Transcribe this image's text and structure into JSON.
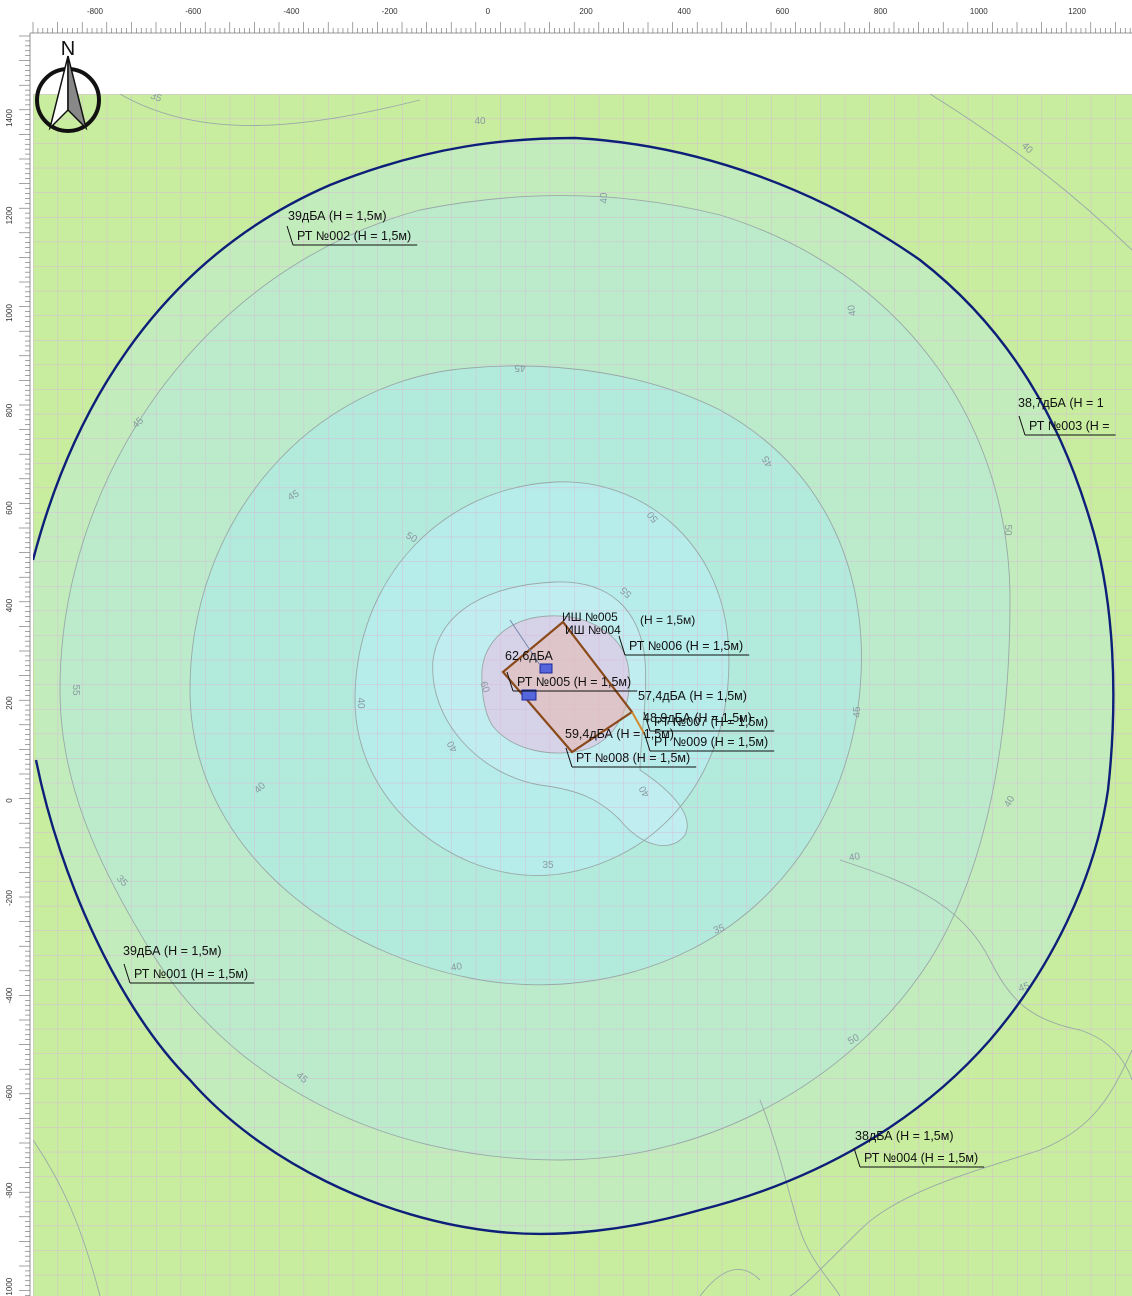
{
  "map": {
    "north_label": "N",
    "x_ticks": [
      "-800",
      "-600",
      "-400",
      "-200",
      "0",
      "200",
      "400",
      "600",
      "800",
      "1000",
      "1200"
    ],
    "y_ticks": [
      "1400",
      "1200",
      "1000",
      "800",
      "600",
      "400",
      "200",
      "0",
      "-200",
      "-400",
      "-600",
      "-800",
      "-1000"
    ],
    "colors": {
      "background": "#c8ed9e",
      "zone_outer": "#c2ecbe",
      "zone_40": "#b9ebcd",
      "zone_45": "#b0eadb",
      "zone_50": "#b6ecec",
      "zone_55": "#d9cde3",
      "boundary_line": "#0d1f78",
      "site_outline": "#8a4a1a",
      "grid": "#d9b9d6"
    },
    "isoline_labels": [
      "35",
      "40",
      "40",
      "40",
      "40",
      "45",
      "45",
      "45",
      "45",
      "50",
      "50",
      "50",
      "55",
      "55",
      "60",
      "40",
      "45",
      "40",
      "40",
      "40",
      "35",
      "35",
      "40",
      "40",
      "35",
      "40",
      "45",
      "50",
      "45"
    ],
    "calc_points": [
      {
        "level": "39дБА (Н = 1,5м)",
        "name": "РТ №002 (Н = 1,5м)"
      },
      {
        "level": "38,7дБА (Н = 1",
        "name": "РТ №003 (Н ="
      },
      {
        "level": "39дБА (Н = 1,5м)",
        "name": "РТ №001 (Н = 1,5м)"
      },
      {
        "level": "38дБА (Н = 1,5м)",
        "name": "РТ №004 (Н = 1,5м)"
      },
      {
        "level": "62,6дБА",
        "name": "РТ №005 (Н = 1,5м)"
      },
      {
        "level": "57,4дБА (Н = 1,5м)",
        "name": "РТ №006 (Н = 1,5м)"
      },
      {
        "level": "59,4дБА (Н = 1,5м)",
        "name": "РТ №008 (Н = 1,5м)"
      },
      {
        "level": "48,9дБА (Н = 1,5м)",
        "name": "РТ №009 (Н = 1,5м)"
      },
      {
        "level": "",
        "name": "РТ №007 (Н = 1,5м)"
      }
    ],
    "sources": [
      "ИШ №005",
      "ИШ №004",
      "(Н = 1,5м)"
    ]
  }
}
